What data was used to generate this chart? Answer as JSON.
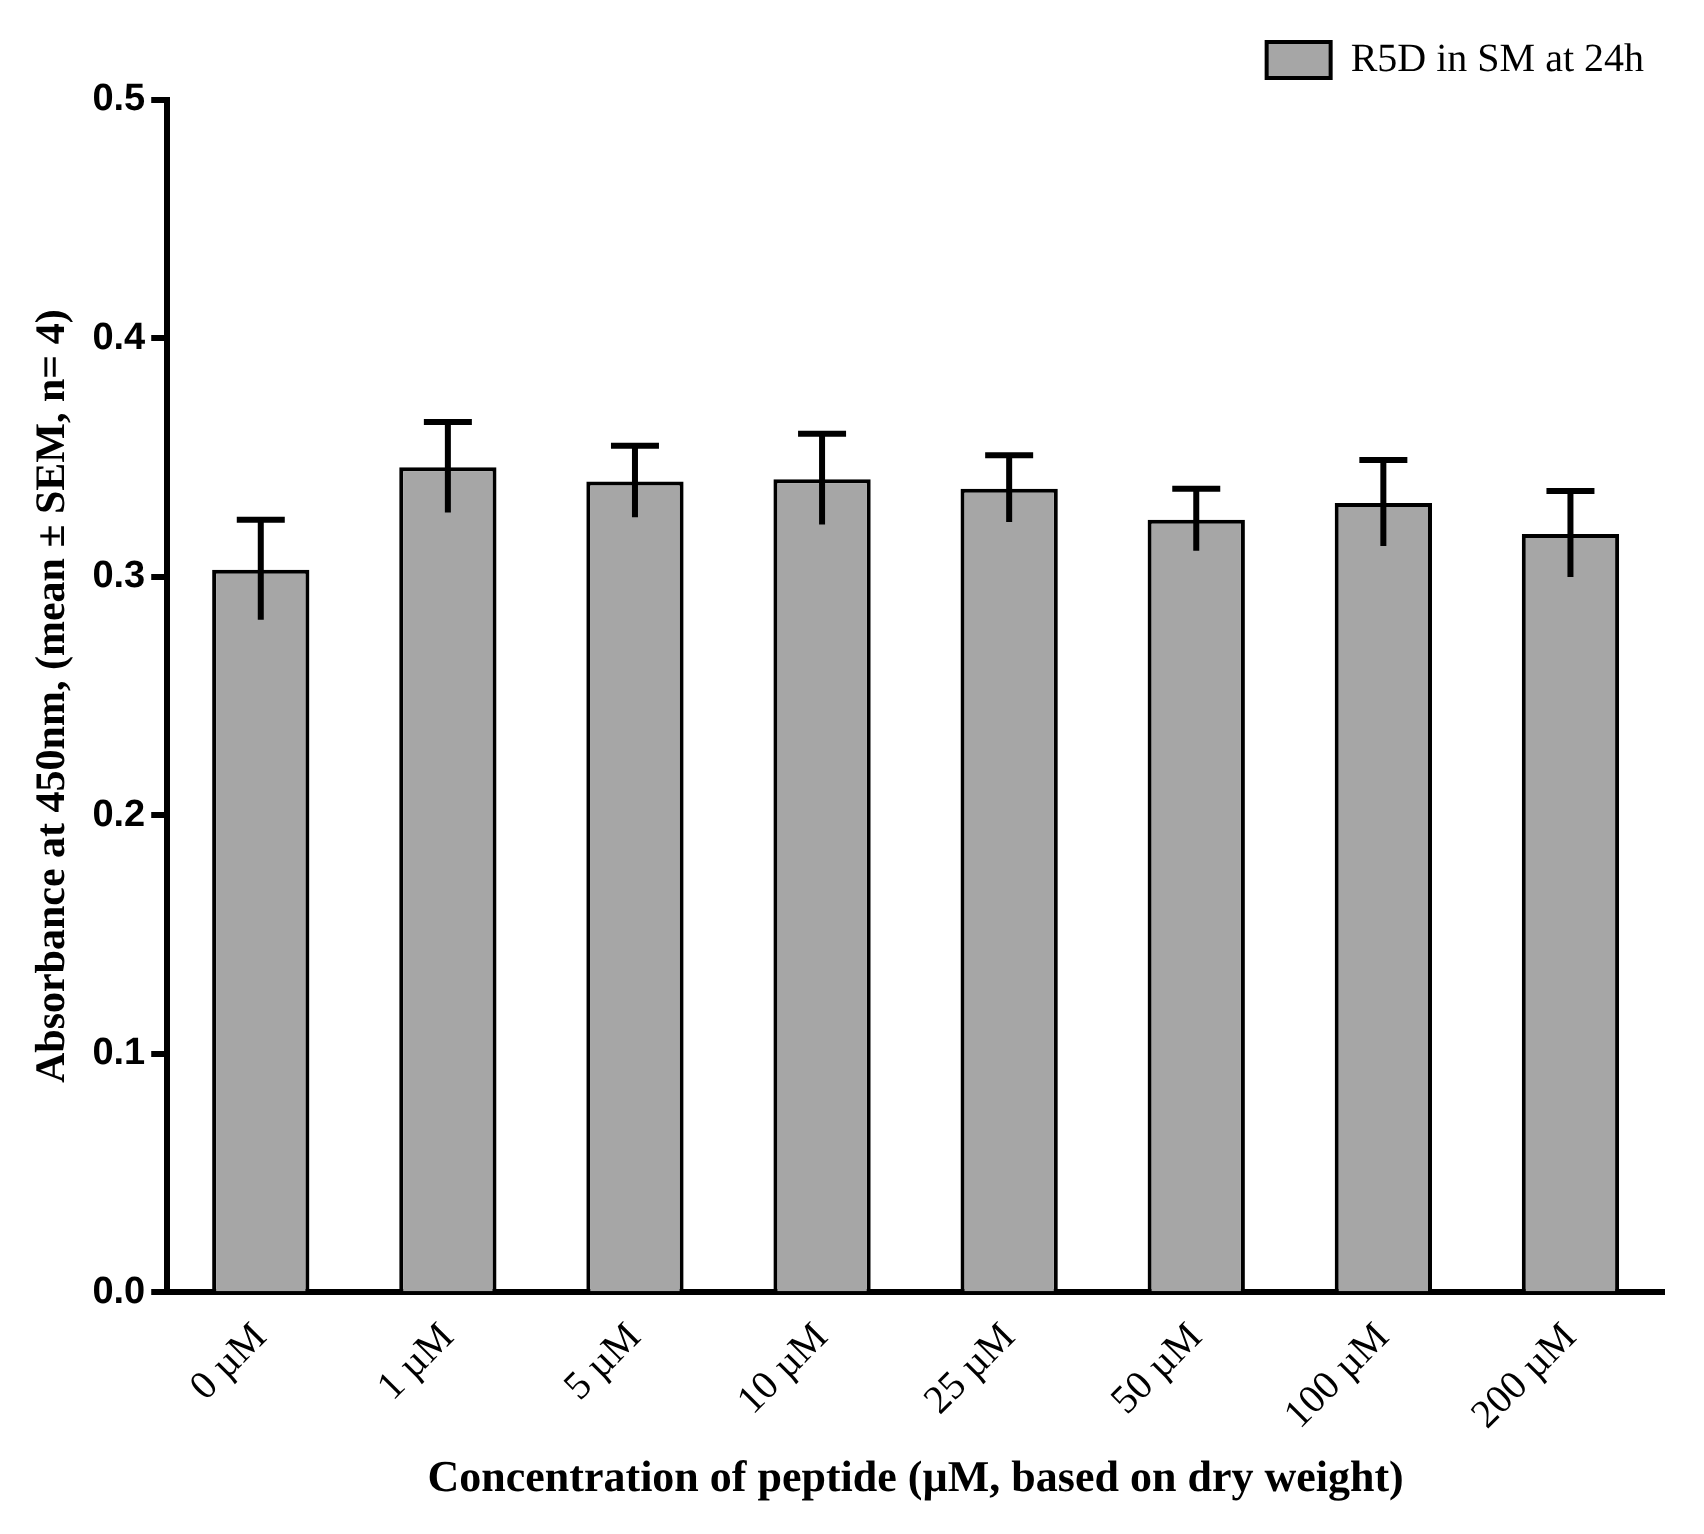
{
  "chart_data": {
    "type": "bar",
    "xlabel": "Concentration of peptide (µM, based on dry weight)",
    "ylabel": "Absorbance at 450nm, (mean ± SEM, n= 4)",
    "categories": [
      "0 µM",
      "1 µM",
      "5 µM",
      "10 µM",
      "25 µM",
      "50 µM",
      "100 µM",
      "200 µM"
    ],
    "series": [
      {
        "name": "R5D in SM at 24h",
        "color": "#a6a6a6",
        "values": [
          0.303,
          0.346,
          0.34,
          0.341,
          0.337,
          0.324,
          0.331,
          0.318
        ],
        "errors": [
          0.021,
          0.019,
          0.015,
          0.019,
          0.014,
          0.013,
          0.018,
          0.018
        ]
      }
    ],
    "ylim": [
      0,
      0.5
    ],
    "yticks": [
      {
        "value": 0,
        "label": "0.0"
      },
      0.1,
      0.2,
      0.3,
      0.4,
      0.5
    ],
    "grid": false,
    "legend": "top right"
  }
}
